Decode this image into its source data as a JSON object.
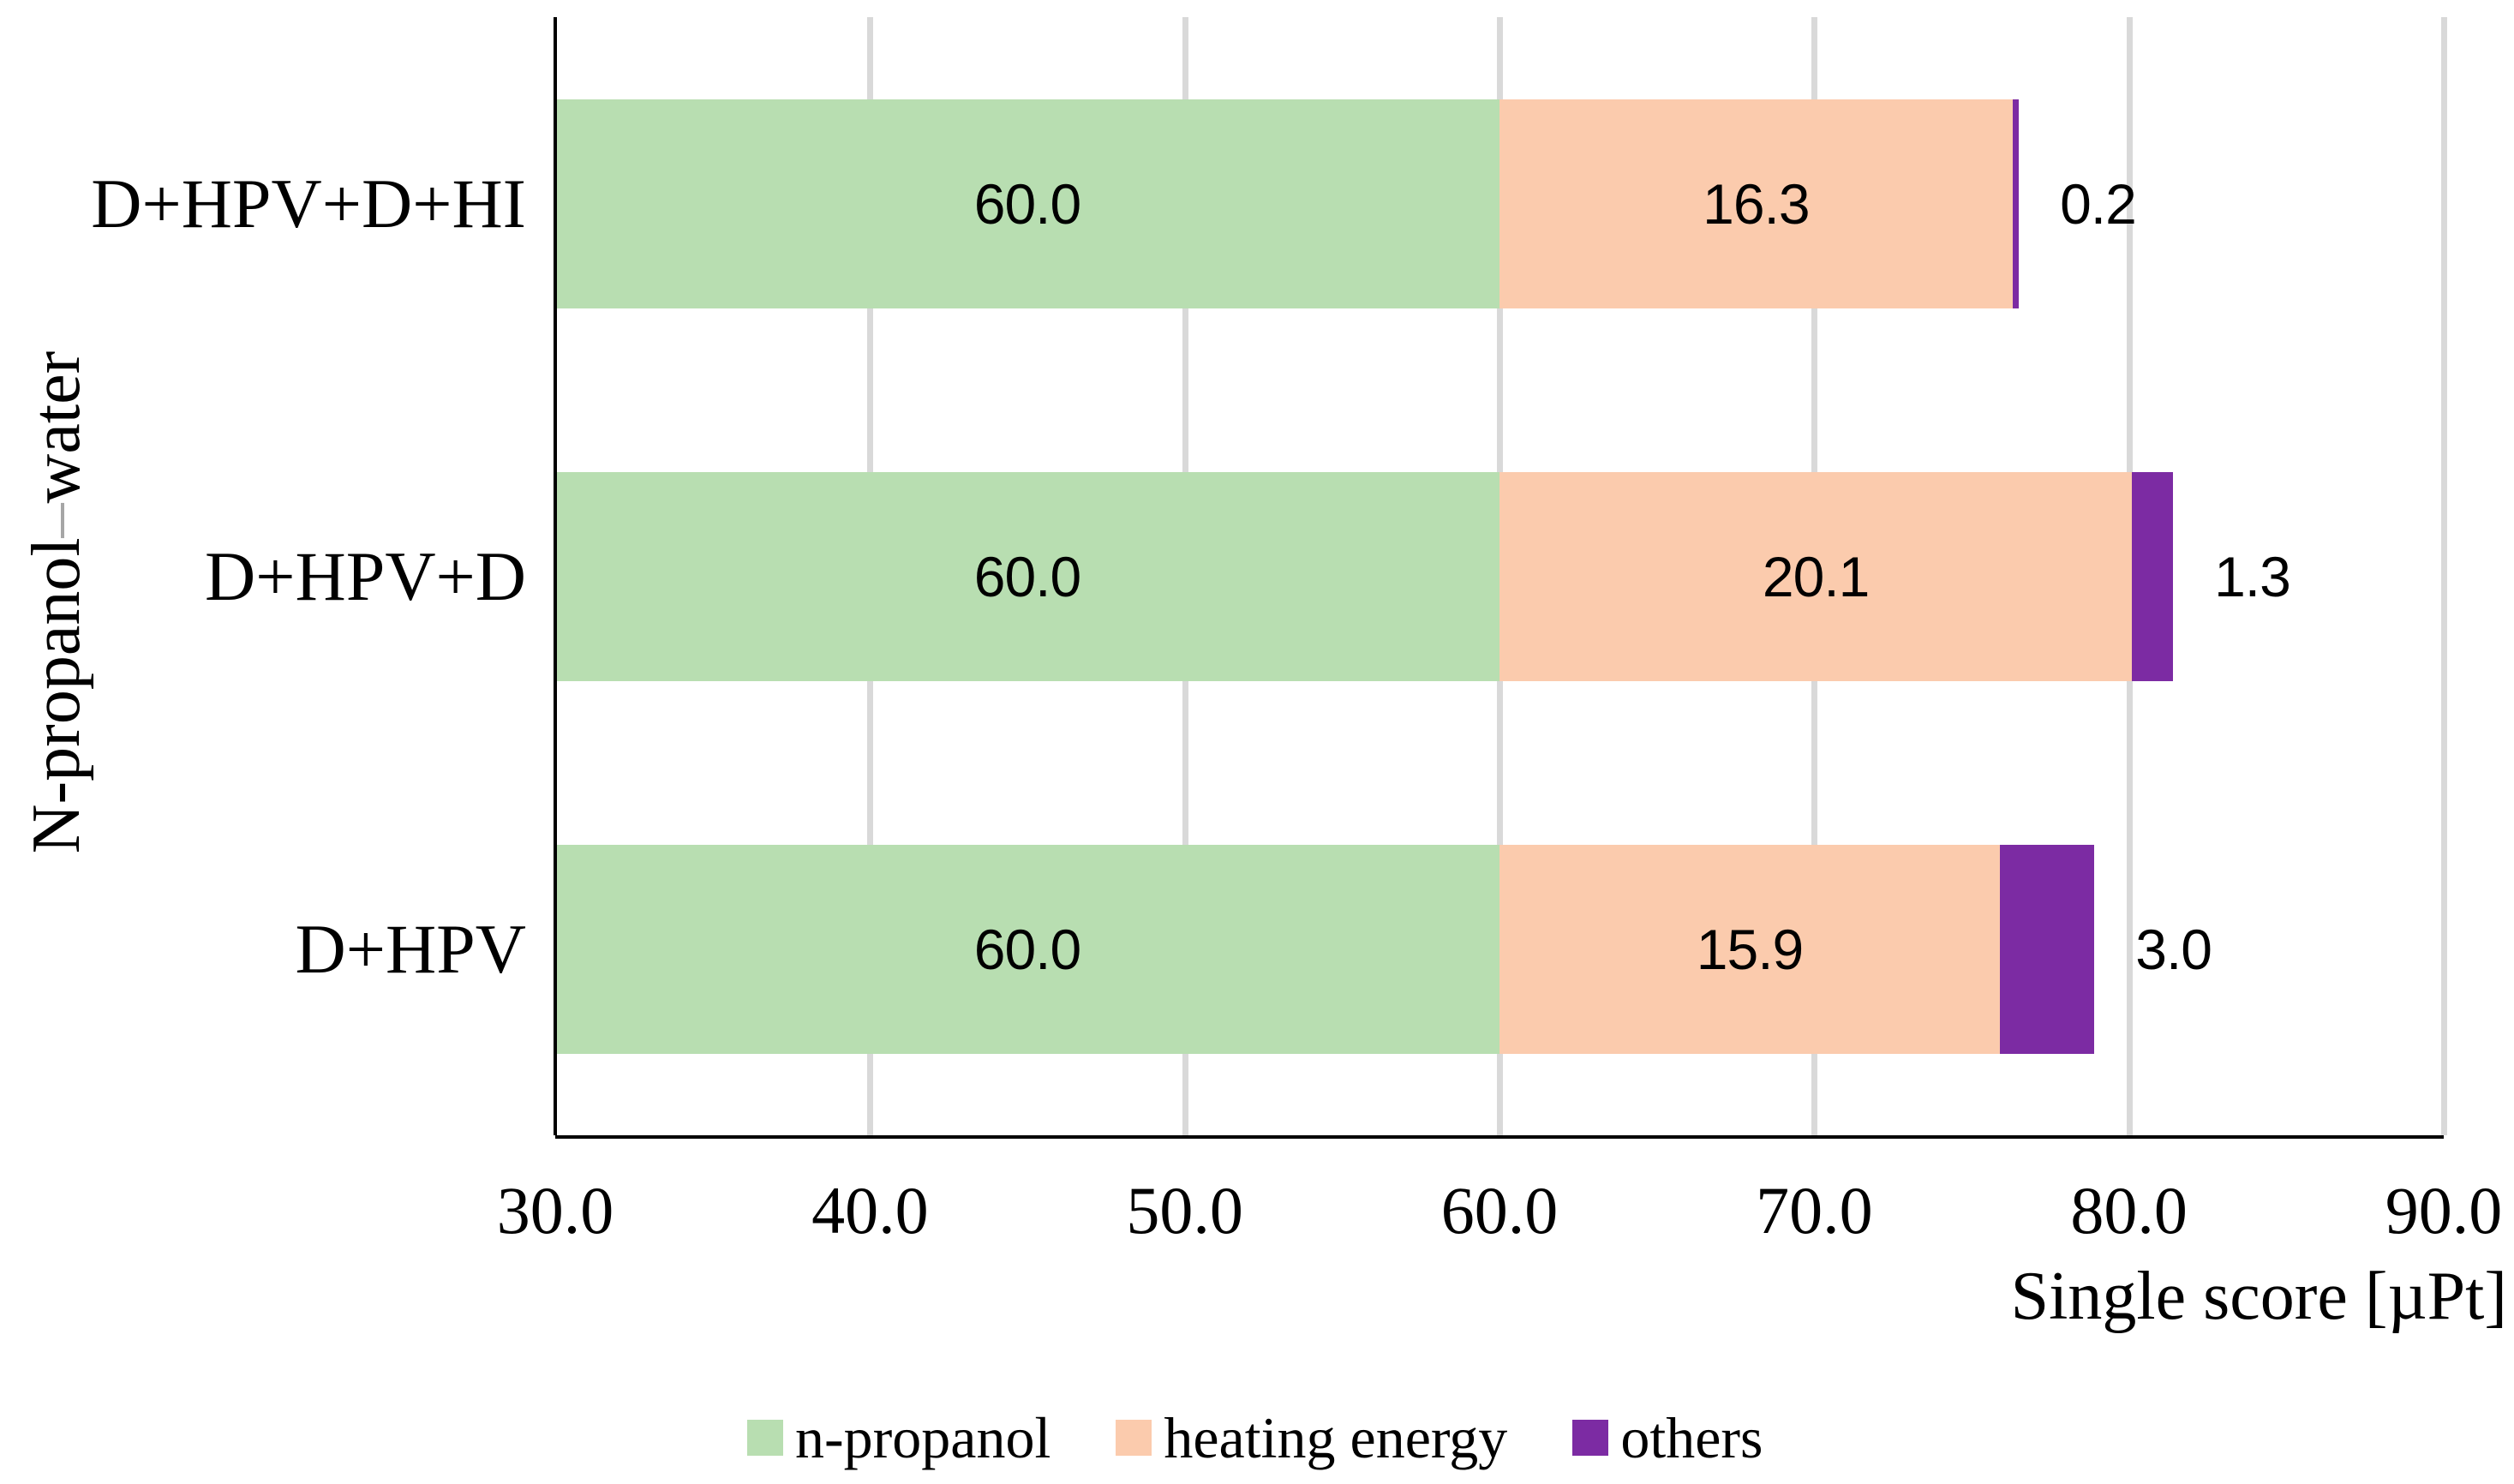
{
  "chart_data": {
    "type": "bar",
    "orientation": "horizontal",
    "stacked": true,
    "xlabel": "Single score [µPt]",
    "ylabel": "N-propanol–water",
    "xlim": [
      30.0,
      90.0
    ],
    "x_ticks": [
      30,
      40,
      50,
      60,
      70,
      80,
      90
    ],
    "x_tick_labels": [
      "30.0",
      "40.0",
      "50.0",
      "60.0",
      "70.0",
      "80.0",
      "90.0"
    ],
    "grid": true,
    "legend_position": "bottom",
    "categories": [
      "D+HPV+D+HI",
      "D+HPV+D",
      "D+HPV"
    ],
    "series": [
      {
        "name": "n-propanol",
        "color": "#B8DEB1",
        "label_placement": "inside",
        "values": [
          60.0,
          60.0,
          60.0
        ],
        "labels": [
          "60.0",
          "60.0",
          "60.0"
        ]
      },
      {
        "name": "heating energy",
        "color": "#FBCBAD",
        "label_placement": "inside",
        "values": [
          16.3,
          20.1,
          15.9
        ],
        "labels": [
          "16.3",
          "20.1",
          "15.9"
        ]
      },
      {
        "name": "others",
        "color": "#7C2BA3",
        "label_placement": "outside",
        "values": [
          0.2,
          1.3,
          3.0
        ],
        "labels": [
          "0.2",
          "1.3",
          "3.0"
        ]
      }
    ]
  },
  "axes": {
    "y_title_pre": "N-propanol",
    "y_title_dash": "–",
    "y_title_post": "water",
    "x_title": "Single score [µPt]"
  },
  "legend": {
    "items": [
      {
        "label": "n-propanol",
        "color": "#B8DEB1"
      },
      {
        "label": "heating energy",
        "color": "#FBCBAD"
      },
      {
        "label": "others",
        "color": "#7C2BA3"
      }
    ]
  },
  "colors": {
    "background": "#FFFFFF",
    "gridline": "#D9D9D9",
    "axis": "#000000",
    "y_title_dash_gray": "#A6A6A6",
    "label_text": "#000000"
  }
}
